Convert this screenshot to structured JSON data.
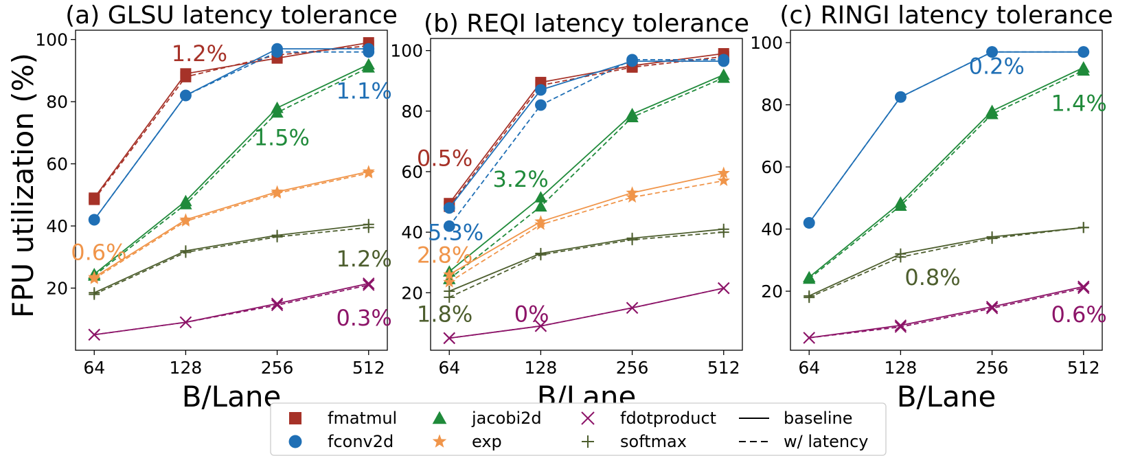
{
  "figure": {
    "ylabel": "FPU utilization (%)",
    "colors": {
      "fmatmul": "#a63228",
      "fconv2d": "#1f6fb5",
      "jacobi2d": "#1f8a3a",
      "exp": "#f0954a",
      "softmax": "#4d5e2e",
      "fdotproduct": "#8c1468",
      "axis": "#000000"
    },
    "legend": {
      "placement": "bottom-center",
      "entries": [
        {
          "key": "fmatmul",
          "label": "fmatmul",
          "marker": "square"
        },
        {
          "key": "fconv2d",
          "label": "fconv2d",
          "marker": "circle"
        },
        {
          "key": "jacobi2d",
          "label": "jacobi2d",
          "marker": "triangle"
        },
        {
          "key": "exp",
          "label": "exp",
          "marker": "star"
        },
        {
          "key": "fdotproduct",
          "label": "fdotproduct",
          "marker": "x"
        },
        {
          "key": "softmax",
          "label": "softmax",
          "marker": "plus"
        },
        {
          "key": "baseline",
          "label": "baseline",
          "marker": "solid-line"
        },
        {
          "key": "latency",
          "label": "w/ latency",
          "marker": "dashed-line"
        }
      ]
    }
  },
  "chart_data": [
    {
      "type": "line",
      "title": "(a) GLSU latency tolerance",
      "xlabel": "B/Lane",
      "ylabel": "FPU utilization (%)",
      "categories": [
        "64",
        "128",
        "256",
        "512"
      ],
      "ylim": [
        0,
        103
      ],
      "yticks": [
        20,
        40,
        60,
        80,
        100
      ],
      "series": [
        {
          "key": "fmatmul",
          "name": "fmatmul",
          "marker": "square",
          "baseline": [
            49,
            89,
            94,
            99
          ],
          "latency": [
            48.5,
            88,
            95,
            98
          ]
        },
        {
          "key": "fconv2d",
          "name": "fconv2d",
          "marker": "circle",
          "baseline": [
            42,
            82,
            97,
            97
          ],
          "latency": [
            42,
            82,
            96,
            96
          ]
        },
        {
          "key": "jacobi2d",
          "name": "jacobi2d",
          "marker": "triangle",
          "baseline": [
            24.5,
            48,
            78,
            92
          ],
          "latency": [
            24,
            47,
            76.5,
            91
          ]
        },
        {
          "key": "exp",
          "name": "exp",
          "marker": "star",
          "baseline": [
            23.5,
            42,
            51,
            57.5
          ],
          "latency": [
            23,
            41.5,
            50.5,
            57
          ]
        },
        {
          "key": "softmax",
          "name": "softmax",
          "marker": "plus",
          "baseline": [
            18.5,
            32,
            37,
            40.5
          ],
          "latency": [
            18,
            31.5,
            36.5,
            39.5
          ]
        },
        {
          "key": "fdotproduct",
          "name": "fdotproduct",
          "marker": "x",
          "baseline": [
            5,
            9,
            15,
            21.5
          ],
          "latency": [
            5,
            9,
            14.5,
            21
          ]
        }
      ],
      "annotations": [
        {
          "text": "1.2%",
          "key": "fmatmul",
          "at": [
            1.15,
            95
          ]
        },
        {
          "text": "1.1%",
          "key": "fconv2d",
          "at": [
            2.95,
            83
          ]
        },
        {
          "text": "1.5%",
          "key": "jacobi2d",
          "at": [
            2.05,
            68
          ]
        },
        {
          "text": "0.6%",
          "key": "exp",
          "at": [
            0.05,
            31
          ]
        },
        {
          "text": "1.2%",
          "key": "softmax",
          "at": [
            2.95,
            29
          ]
        },
        {
          "text": "0.3%",
          "key": "fdotproduct",
          "at": [
            2.95,
            10
          ]
        }
      ]
    },
    {
      "type": "line",
      "title": "(b) REQI latency tolerance",
      "xlabel": "B/Lane",
      "categories": [
        "64",
        "128",
        "256",
        "512"
      ],
      "ylim": [
        1,
        104
      ],
      "yticks": [
        20,
        40,
        60,
        80,
        100
      ],
      "series": [
        {
          "key": "fmatmul",
          "name": "fmatmul",
          "marker": "square",
          "baseline": [
            49.5,
            89.5,
            95,
            99
          ],
          "latency": [
            48.5,
            88.5,
            94.5,
            98
          ]
        },
        {
          "key": "fconv2d",
          "name": "fconv2d",
          "marker": "circle",
          "baseline": [
            48,
            87,
            96.5,
            96.5
          ],
          "latency": [
            42,
            82,
            97,
            97
          ]
        },
        {
          "key": "jacobi2d",
          "name": "jacobi2d",
          "marker": "triangle",
          "baseline": [
            27,
            51.5,
            79,
            92
          ],
          "latency": [
            24.5,
            48.5,
            78,
            91
          ]
        },
        {
          "key": "exp",
          "name": "exp",
          "marker": "star",
          "baseline": [
            26,
            43.5,
            53,
            59.5
          ],
          "latency": [
            23.5,
            42.5,
            51.5,
            57
          ]
        },
        {
          "key": "softmax",
          "name": "softmax",
          "marker": "plus",
          "baseline": [
            20.5,
            33,
            38,
            41
          ],
          "latency": [
            18.5,
            32.5,
            37.5,
            40
          ]
        },
        {
          "key": "fdotproduct",
          "name": "fdotproduct",
          "marker": "x",
          "baseline": [
            5,
            9,
            15,
            21.5
          ],
          "latency": [
            5,
            9,
            15,
            21.5
          ]
        }
      ],
      "annotations": [
        {
          "text": "0.5%",
          "key": "fmatmul",
          "at": [
            -0.05,
            64
          ]
        },
        {
          "text": "5.3%",
          "key": "fconv2d",
          "at": [
            0.07,
            39.5
          ]
        },
        {
          "text": "3.2%",
          "key": "jacobi2d",
          "at": [
            0.78,
            57
          ]
        },
        {
          "text": "2.8%",
          "key": "exp",
          "at": [
            -0.05,
            32
          ]
        },
        {
          "text": "1.8%",
          "key": "softmax",
          "at": [
            -0.05,
            12.5
          ]
        },
        {
          "text": "0%",
          "key": "fdotproduct",
          "at": [
            0.9,
            12.5
          ]
        }
      ]
    },
    {
      "type": "line",
      "title": "(c) RINGI latency tolerance",
      "xlabel": "B/Lane",
      "categories": [
        "64",
        "128",
        "256",
        "512"
      ],
      "ylim": [
        1,
        104
      ],
      "yticks": [
        20,
        40,
        60,
        80,
        100
      ],
      "series": [
        {
          "key": "fconv2d",
          "name": "fconv2d",
          "marker": "circle",
          "baseline": [
            42,
            82.5,
            97,
            97
          ],
          "latency": [
            42,
            82.5,
            97,
            97
          ]
        },
        {
          "key": "jacobi2d",
          "name": "jacobi2d",
          "marker": "triangle",
          "baseline": [
            24.5,
            48.5,
            78,
            92
          ],
          "latency": [
            24,
            47.5,
            77,
            91
          ]
        },
        {
          "key": "softmax",
          "name": "softmax",
          "marker": "plus",
          "baseline": [
            18.5,
            32,
            37.5,
            40.5
          ],
          "latency": [
            18,
            31,
            37,
            40.5
          ]
        },
        {
          "key": "fdotproduct",
          "name": "fdotproduct",
          "marker": "x",
          "baseline": [
            5,
            9,
            15,
            21.5
          ],
          "latency": [
            5,
            8.5,
            14.5,
            21
          ]
        }
      ],
      "annotations": [
        {
          "text": "0.2%",
          "key": "fconv2d",
          "at": [
            2.05,
            92
          ]
        },
        {
          "text": "1.4%",
          "key": "jacobi2d",
          "at": [
            2.95,
            80
          ]
        },
        {
          "text": "0.8%",
          "key": "softmax",
          "at": [
            1.35,
            24
          ]
        },
        {
          "text": "0.6%",
          "key": "fdotproduct",
          "at": [
            2.95,
            12
          ]
        }
      ]
    }
  ]
}
